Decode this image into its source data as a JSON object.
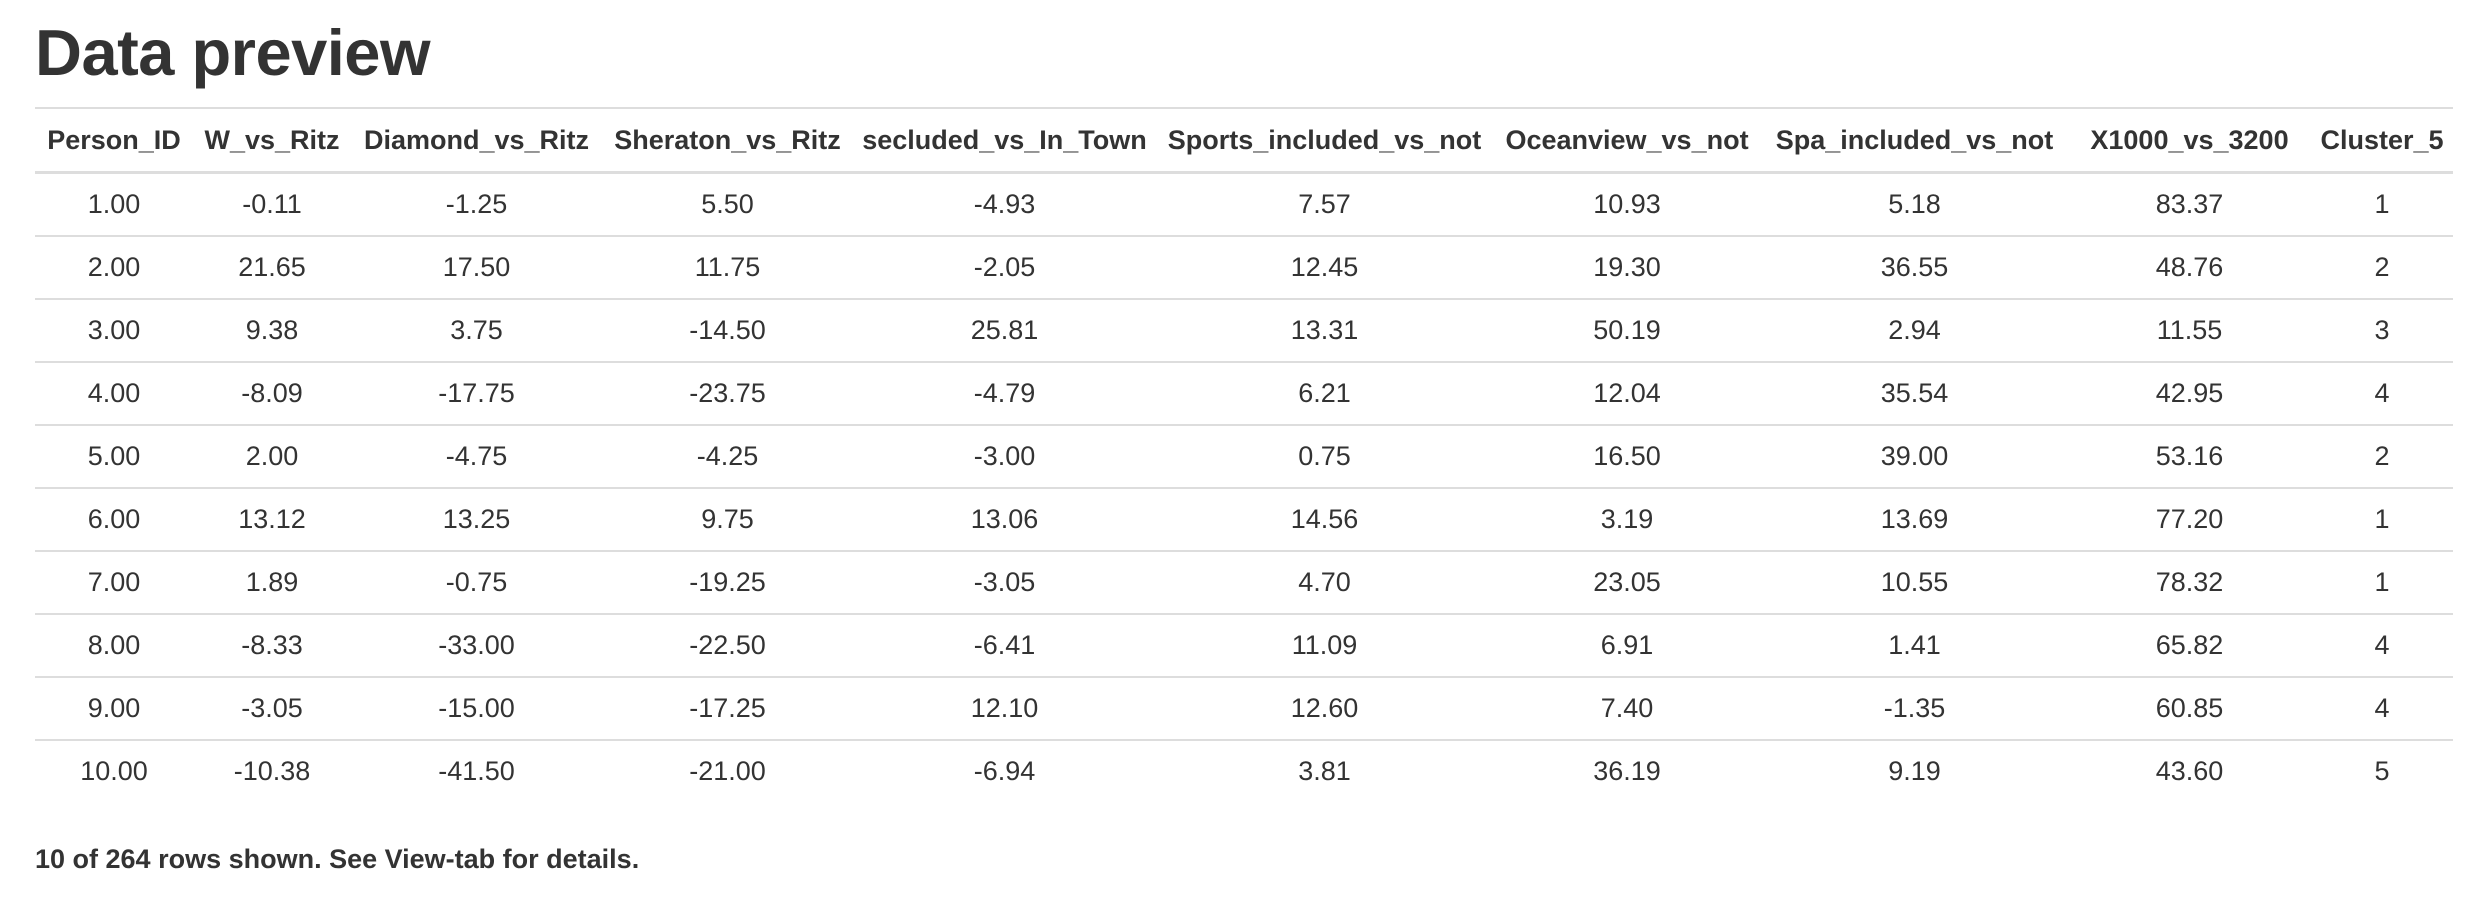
{
  "page": {
    "title": "Data preview",
    "footer_note": "10 of 264 rows shown. See View-tab for details."
  },
  "table": {
    "columns": [
      "Person_ID",
      "W_vs_Ritz",
      "Diamond_vs_Ritz",
      "Sheraton_vs_Ritz",
      "secluded_vs_In_Town",
      "Sports_included_vs_not",
      "Oceanview_vs_not",
      "Spa_included_vs_not",
      "X1000_vs_3200",
      "Cluster_5"
    ],
    "rows": [
      [
        "1.00",
        "-0.11",
        "-1.25",
        "5.50",
        "-4.93",
        "7.57",
        "10.93",
        "5.18",
        "83.37",
        "1"
      ],
      [
        "2.00",
        "21.65",
        "17.50",
        "11.75",
        "-2.05",
        "12.45",
        "19.30",
        "36.55",
        "48.76",
        "2"
      ],
      [
        "3.00",
        "9.38",
        "3.75",
        "-14.50",
        "25.81",
        "13.31",
        "50.19",
        "2.94",
        "11.55",
        "3"
      ],
      [
        "4.00",
        "-8.09",
        "-17.75",
        "-23.75",
        "-4.79",
        "6.21",
        "12.04",
        "35.54",
        "42.95",
        "4"
      ],
      [
        "5.00",
        "2.00",
        "-4.75",
        "-4.25",
        "-3.00",
        "0.75",
        "16.50",
        "39.00",
        "53.16",
        "2"
      ],
      [
        "6.00",
        "13.12",
        "13.25",
        "9.75",
        "13.06",
        "14.56",
        "3.19",
        "13.69",
        "77.20",
        "1"
      ],
      [
        "7.00",
        "1.89",
        "-0.75",
        "-19.25",
        "-3.05",
        "4.70",
        "23.05",
        "10.55",
        "78.32",
        "1"
      ],
      [
        "8.00",
        "-8.33",
        "-33.00",
        "-22.50",
        "-6.41",
        "11.09",
        "6.91",
        "1.41",
        "65.82",
        "4"
      ],
      [
        "9.00",
        "-3.05",
        "-15.00",
        "-17.25",
        "12.10",
        "12.60",
        "7.40",
        "-1.35",
        "60.85",
        "4"
      ],
      [
        "10.00",
        "-10.38",
        "-41.50",
        "-21.00",
        "-6.94",
        "3.81",
        "36.19",
        "9.19",
        "43.60",
        "5"
      ]
    ]
  }
}
